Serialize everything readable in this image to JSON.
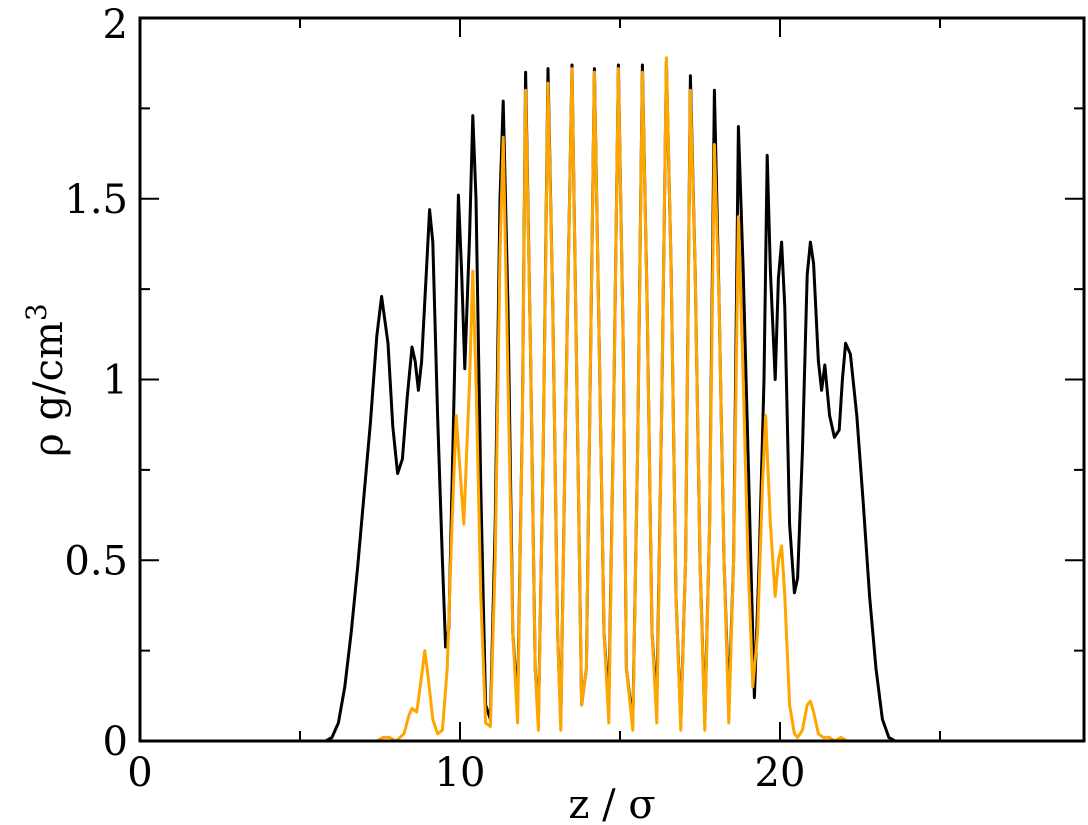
{
  "chart_data": {
    "type": "line",
    "title": "",
    "xlabel": "z / σ",
    "ylabel_main": "ρ g/cm",
    "ylabel_sup": "3",
    "xlim": [
      0,
      29.5
    ],
    "ylim": [
      0,
      2
    ],
    "x_ticks": [
      0,
      10,
      20
    ],
    "x_tick_labels": [
      "0",
      "10",
      "20"
    ],
    "y_ticks": [
      0,
      0.5,
      1,
      1.5,
      2
    ],
    "y_tick_labels": [
      "0",
      "0.5",
      "1",
      "1.5",
      "2"
    ],
    "x_minor_step": 5,
    "y_minor_step": 0.25,
    "grid": false,
    "legend": "none",
    "series": [
      {
        "color": "#000000",
        "points": [
          [
            0,
            0
          ],
          [
            5.8,
            0
          ],
          [
            6.0,
            0.01
          ],
          [
            6.2,
            0.05
          ],
          [
            6.4,
            0.15
          ],
          [
            6.6,
            0.3
          ],
          [
            6.8,
            0.48
          ],
          [
            7.0,
            0.68
          ],
          [
            7.2,
            0.88
          ],
          [
            7.4,
            1.12
          ],
          [
            7.55,
            1.23
          ],
          [
            7.75,
            1.1
          ],
          [
            7.9,
            0.87
          ],
          [
            8.05,
            0.74
          ],
          [
            8.2,
            0.78
          ],
          [
            8.35,
            0.95
          ],
          [
            8.5,
            1.09
          ],
          [
            8.6,
            1.05
          ],
          [
            8.7,
            0.97
          ],
          [
            8.8,
            1.05
          ],
          [
            8.95,
            1.3
          ],
          [
            9.05,
            1.47
          ],
          [
            9.15,
            1.38
          ],
          [
            9.3,
            0.9
          ],
          [
            9.45,
            0.5
          ],
          [
            9.55,
            0.26
          ],
          [
            9.65,
            0.31
          ],
          [
            9.8,
            0.9
          ],
          [
            9.95,
            1.51
          ],
          [
            10.05,
            1.3
          ],
          [
            10.15,
            1.03
          ],
          [
            10.3,
            1.4
          ],
          [
            10.4,
            1.73
          ],
          [
            10.5,
            1.5
          ],
          [
            10.65,
            0.7
          ],
          [
            10.8,
            0.1
          ],
          [
            10.95,
            0.06
          ],
          [
            11.1,
            0.6
          ],
          [
            11.25,
            1.5
          ],
          [
            11.35,
            1.77
          ],
          [
            11.5,
            1.2
          ],
          [
            11.65,
            0.3
          ],
          [
            11.8,
            0.1
          ],
          [
            11.95,
            0.9
          ],
          [
            12.05,
            1.85
          ],
          [
            12.2,
            1.1
          ],
          [
            12.35,
            0.2
          ],
          [
            12.45,
            0.05
          ],
          [
            12.6,
            0.8
          ],
          [
            12.75,
            1.86
          ],
          [
            12.9,
            1.2
          ],
          [
            13.05,
            0.3
          ],
          [
            13.15,
            0.05
          ],
          [
            13.3,
            0.9
          ],
          [
            13.5,
            1.87
          ],
          [
            13.65,
            1.0
          ],
          [
            13.8,
            0.1
          ],
          [
            13.95,
            0.2
          ],
          [
            14.1,
            1.2
          ],
          [
            14.2,
            1.86
          ],
          [
            14.35,
            1.1
          ],
          [
            14.5,
            0.3
          ],
          [
            14.65,
            0.1
          ],
          [
            14.8,
            0.9
          ],
          [
            14.95,
            1.87
          ],
          [
            15.1,
            1.1
          ],
          [
            15.2,
            0.2
          ],
          [
            15.4,
            0.05
          ],
          [
            15.55,
            0.8
          ],
          [
            15.7,
            1.87
          ],
          [
            15.85,
            1.2
          ],
          [
            16.0,
            0.3
          ],
          [
            16.15,
            0.1
          ],
          [
            16.3,
            0.9
          ],
          [
            16.45,
            1.88
          ],
          [
            16.6,
            1.3
          ],
          [
            16.75,
            0.4
          ],
          [
            16.9,
            0.05
          ],
          [
            17.05,
            0.5
          ],
          [
            17.2,
            1.84
          ],
          [
            17.35,
            1.3
          ],
          [
            17.5,
            0.5
          ],
          [
            17.65,
            0.05
          ],
          [
            17.8,
            0.6
          ],
          [
            17.95,
            1.8
          ],
          [
            18.1,
            1.2
          ],
          [
            18.25,
            0.5
          ],
          [
            18.4,
            0.1
          ],
          [
            18.55,
            0.5
          ],
          [
            18.7,
            1.7
          ],
          [
            18.85,
            1.3
          ],
          [
            19.0,
            0.8
          ],
          [
            19.2,
            0.12
          ],
          [
            19.35,
            0.5
          ],
          [
            19.5,
            1.0
          ],
          [
            19.6,
            1.62
          ],
          [
            19.7,
            1.3
          ],
          [
            19.85,
            1.0
          ],
          [
            19.95,
            1.28
          ],
          [
            20.05,
            1.38
          ],
          [
            20.15,
            1.2
          ],
          [
            20.3,
            0.6
          ],
          [
            20.45,
            0.41
          ],
          [
            20.55,
            0.45
          ],
          [
            20.7,
            0.8
          ],
          [
            20.85,
            1.29
          ],
          [
            20.95,
            1.38
          ],
          [
            21.05,
            1.32
          ],
          [
            21.2,
            1.05
          ],
          [
            21.3,
            0.97
          ],
          [
            21.4,
            1.04
          ],
          [
            21.55,
            0.9
          ],
          [
            21.7,
            0.84
          ],
          [
            21.85,
            0.86
          ],
          [
            21.95,
            1.0
          ],
          [
            22.05,
            1.1
          ],
          [
            22.2,
            1.07
          ],
          [
            22.4,
            0.9
          ],
          [
            22.6,
            0.66
          ],
          [
            22.8,
            0.4
          ],
          [
            23.0,
            0.2
          ],
          [
            23.2,
            0.06
          ],
          [
            23.4,
            0.01
          ],
          [
            23.6,
            0
          ],
          [
            29.5,
            0
          ]
        ]
      },
      {
        "color": "#FFA500",
        "points": [
          [
            0,
            0
          ],
          [
            7.4,
            0
          ],
          [
            7.6,
            0.01
          ],
          [
            7.8,
            0.01
          ],
          [
            8.0,
            0
          ],
          [
            8.25,
            0.02
          ],
          [
            8.4,
            0.07
          ],
          [
            8.5,
            0.09
          ],
          [
            8.65,
            0.08
          ],
          [
            8.8,
            0.18
          ],
          [
            8.9,
            0.25
          ],
          [
            9.0,
            0.18
          ],
          [
            9.15,
            0.06
          ],
          [
            9.3,
            0.02
          ],
          [
            9.45,
            0.03
          ],
          [
            9.6,
            0.2
          ],
          [
            9.75,
            0.6
          ],
          [
            9.88,
            0.9
          ],
          [
            10.0,
            0.75
          ],
          [
            10.12,
            0.6
          ],
          [
            10.3,
            1.0
          ],
          [
            10.4,
            1.3
          ],
          [
            10.5,
            1.0
          ],
          [
            10.65,
            0.4
          ],
          [
            10.8,
            0.05
          ],
          [
            10.95,
            0.04
          ],
          [
            11.1,
            0.5
          ],
          [
            11.25,
            1.35
          ],
          [
            11.35,
            1.67
          ],
          [
            11.5,
            1.0
          ],
          [
            11.65,
            0.3
          ],
          [
            11.8,
            0.05
          ],
          [
            11.95,
            0.9
          ],
          [
            12.05,
            1.8
          ],
          [
            12.2,
            1.1
          ],
          [
            12.35,
            0.2
          ],
          [
            12.45,
            0.03
          ],
          [
            12.6,
            0.8
          ],
          [
            12.75,
            1.82
          ],
          [
            12.9,
            1.2
          ],
          [
            13.05,
            0.3
          ],
          [
            13.15,
            0.03
          ],
          [
            13.3,
            0.9
          ],
          [
            13.5,
            1.86
          ],
          [
            13.65,
            1.0
          ],
          [
            13.8,
            0.1
          ],
          [
            13.95,
            0.2
          ],
          [
            14.1,
            1.2
          ],
          [
            14.2,
            1.85
          ],
          [
            14.35,
            1.1
          ],
          [
            14.5,
            0.3
          ],
          [
            14.65,
            0.05
          ],
          [
            14.8,
            0.9
          ],
          [
            14.95,
            1.86
          ],
          [
            15.1,
            1.1
          ],
          [
            15.2,
            0.2
          ],
          [
            15.4,
            0.03
          ],
          [
            15.55,
            0.8
          ],
          [
            15.7,
            1.85
          ],
          [
            15.85,
            1.2
          ],
          [
            16.0,
            0.3
          ],
          [
            16.15,
            0.05
          ],
          [
            16.3,
            0.9
          ],
          [
            16.45,
            1.89
          ],
          [
            16.6,
            1.3
          ],
          [
            16.75,
            0.4
          ],
          [
            16.9,
            0.03
          ],
          [
            17.05,
            0.5
          ],
          [
            17.2,
            1.8
          ],
          [
            17.35,
            1.3
          ],
          [
            17.5,
            0.5
          ],
          [
            17.65,
            0.03
          ],
          [
            17.8,
            0.6
          ],
          [
            17.95,
            1.65
          ],
          [
            18.1,
            1.2
          ],
          [
            18.25,
            0.5
          ],
          [
            18.4,
            0.05
          ],
          [
            18.55,
            0.5
          ],
          [
            18.7,
            1.45
          ],
          [
            18.85,
            1.0
          ],
          [
            19.0,
            0.5
          ],
          [
            19.15,
            0.15
          ],
          [
            19.3,
            0.3
          ],
          [
            19.45,
            0.7
          ],
          [
            19.55,
            0.9
          ],
          [
            19.7,
            0.6
          ],
          [
            19.85,
            0.4
          ],
          [
            19.95,
            0.5
          ],
          [
            20.05,
            0.54
          ],
          [
            20.15,
            0.4
          ],
          [
            20.3,
            0.1
          ],
          [
            20.45,
            0.02
          ],
          [
            20.55,
            0.01
          ],
          [
            20.7,
            0.03
          ],
          [
            20.85,
            0.1
          ],
          [
            20.95,
            0.11
          ],
          [
            21.05,
            0.08
          ],
          [
            21.2,
            0.02
          ],
          [
            21.35,
            0.01
          ],
          [
            21.55,
            0.01
          ],
          [
            21.7,
            0
          ],
          [
            21.9,
            0.01
          ],
          [
            22.1,
            0
          ],
          [
            29.5,
            0
          ]
        ]
      }
    ]
  }
}
